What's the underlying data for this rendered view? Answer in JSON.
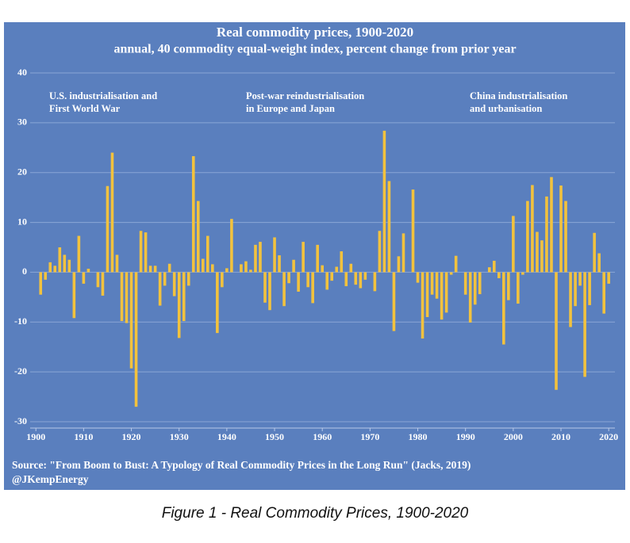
{
  "chart_data": {
    "type": "bar",
    "title": "Real commodity prices, 1900-2020",
    "subtitle": "annual, 40 commodity equal-weight index, percent change from prior year",
    "annotations": [
      [
        "U.S. industrialisation and",
        "First World War"
      ],
      [
        "Post-war reindustrialisation",
        "in Europe and Japan"
      ],
      [
        "China industrialisation",
        "and urbanisation"
      ]
    ],
    "source": [
      "Source: \"From Boom to Bust: A Typology of Real Commodity Prices in the Long Run\" (Jacks, 2019)",
      "@JKempEnergy"
    ],
    "caption": "Figure 1 - Real Commodity Prices, 1900-2020",
    "color": "#f2c23e",
    "background": "#5a7fbe",
    "grid": true,
    "xlim": [
      1898.8,
      2021.3
    ],
    "xticks": [
      1900,
      1910,
      1920,
      1930,
      1940,
      1950,
      1960,
      1970,
      1980,
      1990,
      2000,
      2010,
      2020
    ],
    "ylim": [
      -30,
      40
    ],
    "yticks": [
      -30,
      -20,
      -10,
      0,
      10,
      20,
      30,
      40
    ],
    "x": [
      1901,
      1902,
      1903,
      1904,
      1905,
      1906,
      1907,
      1908,
      1909,
      1910,
      1911,
      1912,
      1913,
      1914,
      1915,
      1916,
      1917,
      1918,
      1919,
      1920,
      1921,
      1922,
      1923,
      1924,
      1925,
      1926,
      1927,
      1928,
      1929,
      1930,
      1931,
      1932,
      1933,
      1934,
      1935,
      1936,
      1937,
      1938,
      1939,
      1940,
      1941,
      1942,
      1943,
      1944,
      1945,
      1946,
      1947,
      1948,
      1949,
      1950,
      1951,
      1952,
      1953,
      1954,
      1955,
      1956,
      1957,
      1958,
      1959,
      1960,
      1961,
      1962,
      1963,
      1964,
      1965,
      1966,
      1967,
      1968,
      1969,
      1970,
      1971,
      1972,
      1973,
      1974,
      1975,
      1976,
      1977,
      1978,
      1979,
      1980,
      1981,
      1982,
      1983,
      1984,
      1985,
      1986,
      1987,
      1988,
      1989,
      1990,
      1991,
      1992,
      1993,
      1994,
      1995,
      1996,
      1997,
      1998,
      1999,
      2000,
      2001,
      2002,
      2003,
      2004,
      2005,
      2006,
      2007,
      2008,
      2009,
      2010,
      2011,
      2012,
      2013,
      2014,
      2015,
      2016,
      2017,
      2018,
      2019,
      2020
    ],
    "values": [
      -4.5,
      -1.5,
      2,
      1.3,
      5,
      3.5,
      2.5,
      -9.2,
      7.3,
      -2.3,
      0.7,
      0,
      -3,
      -4.7,
      17.3,
      24,
      3.5,
      -9.8,
      -10.2,
      -19.3,
      -27,
      8.3,
      8,
      1.3,
      1.3,
      -6.7,
      -2.7,
      1.7,
      -4.8,
      -13.2,
      -9.8,
      -2.7,
      23.3,
      14.3,
      2.7,
      7.3,
      1.6,
      -12.2,
      -3,
      0.8,
      10.7,
      0,
      1.6,
      2.2,
      0.5,
      5.5,
      6.1,
      -6.1,
      -7.6,
      7,
      3.4,
      -6.8,
      -2.2,
      2.5,
      -3.9,
      6.1,
      -3,
      -6.2,
      5.5,
      1.4,
      -3.5,
      -1.7,
      1.1,
      4.2,
      -2.8,
      1.7,
      -2.5,
      -3.2,
      -1.5,
      0,
      -3.8,
      8.3,
      28.4,
      18.3,
      -11.8,
      3.2,
      7.8,
      0,
      16.6,
      -2.1,
      -13.3,
      -9,
      -4.5,
      -5.3,
      -9.5,
      -8.1,
      -0.5,
      3.3,
      0,
      -4.5,
      -10.1,
      -6.5,
      -4.4,
      0,
      1,
      2.3,
      -1.2,
      -14.5,
      -5.6,
      11.3,
      -6.3,
      -0.5,
      14.3,
      17.5,
      8.1,
      6.4,
      15.2,
      19.1,
      -23.6,
      17.4,
      14.3,
      -11,
      -6.8,
      -2.7,
      -21,
      -6.6,
      7.9,
      3.8,
      -8.3,
      -2.3
    ]
  }
}
